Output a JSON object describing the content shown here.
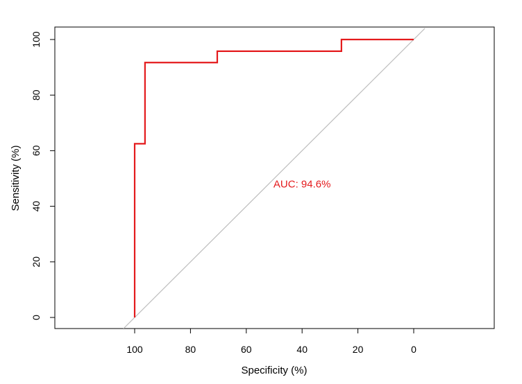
{
  "chart_data": {
    "type": "line",
    "title": "",
    "xlabel": "Specificity (%)",
    "ylabel": "Sensitivity (%)",
    "x_reversed": true,
    "xlim": [
      100,
      0
    ],
    "ylim": [
      0,
      100
    ],
    "x_ticks": [
      100,
      80,
      60,
      40,
      20,
      0
    ],
    "y_ticks": [
      0,
      20,
      40,
      60,
      80,
      100
    ],
    "grid": false,
    "legend": "none",
    "series": [
      {
        "color": "#e41a1c",
        "points": [
          {
            "x": 100,
            "y": 0
          },
          {
            "x": 100,
            "y": 62.5
          },
          {
            "x": 96.3,
            "y": 62.5
          },
          {
            "x": 96.3,
            "y": 91.7
          },
          {
            "x": 70.4,
            "y": 91.7
          },
          {
            "x": 70.4,
            "y": 95.8
          },
          {
            "x": 25.9,
            "y": 95.8
          },
          {
            "x": 25.9,
            "y": 100
          },
          {
            "x": 0,
            "y": 100
          }
        ]
      }
    ],
    "reference_line": {
      "color": "#bebebe",
      "from": [
        104,
        -4
      ],
      "to": [
        -4,
        104
      ]
    },
    "annotations": [
      {
        "text": "AUC: 94.6%",
        "x": 40,
        "y": 48,
        "color": "#e41a1c"
      }
    ]
  }
}
